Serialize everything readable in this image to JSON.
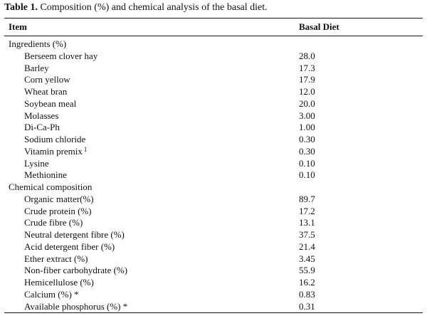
{
  "caption": {
    "label": "Table 1.",
    "text": "Composition (%) and chemical analysis of the basal diet."
  },
  "columns": [
    "Item",
    "Basal Diet"
  ],
  "rows": [
    {
      "label": "Ingredients (%)",
      "value": "",
      "section": true
    },
    {
      "label": "Berseem clover hay",
      "value": "28.0"
    },
    {
      "label": "Barley",
      "value": "17.3"
    },
    {
      "label": "Corn yellow",
      "value": "17.9"
    },
    {
      "label": "Wheat bran",
      "value": "12.0"
    },
    {
      "label": "Soybean meal",
      "value": "20.0"
    },
    {
      "label": "Molasses",
      "value": "3.00"
    },
    {
      "label": "Di-Ca-Ph",
      "value": "1.00"
    },
    {
      "label": "Sodium chloride",
      "value": "0.30"
    },
    {
      "label": "Vitamin premix",
      "sup": "1",
      "value": "0.30"
    },
    {
      "label": "Lysine",
      "value": "0.10"
    },
    {
      "label": "Methionine",
      "value": "0.10"
    },
    {
      "label": "Chemical composition",
      "value": "",
      "section": true
    },
    {
      "label": "Organic matter(%)",
      "value": "89.7"
    },
    {
      "label": "Crude protein (%)",
      "value": "17.2"
    },
    {
      "label": "Crude fibre (%)",
      "value": "13.1"
    },
    {
      "label": "Neutral detergent fibre (%)",
      "value": "37.5"
    },
    {
      "label": "Acid detergent fiber (%)",
      "value": "21.4"
    },
    {
      "label": "Ether extract (%)",
      "value": "3.45"
    },
    {
      "label": "Non-fiber carbohydrate (%)",
      "value": "55.9"
    },
    {
      "label": "Hemicellulose (%)",
      "value": "16.2"
    },
    {
      "label": "Calcium (%) *",
      "value": "0.83"
    },
    {
      "label": "Available phosphorus (%) *",
      "value": "0.31"
    }
  ]
}
